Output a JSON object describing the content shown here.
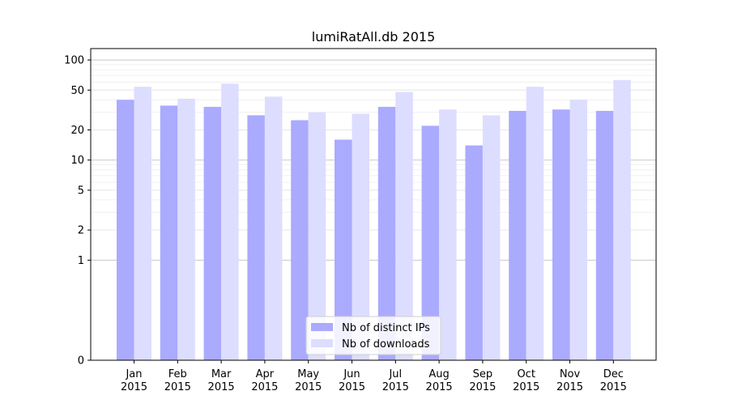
{
  "chart_data": {
    "type": "bar",
    "title": "lumiRatAll.db 2015",
    "xlabel": "",
    "ylabel": "",
    "yscale": "symlog",
    "ylim": [
      0,
      130
    ],
    "yticks": [
      0,
      1,
      2,
      5,
      10,
      20,
      50,
      100
    ],
    "grid": true,
    "legend_position": "bottom-center",
    "categories": [
      "Jan\n2015",
      "Feb\n2015",
      "Mar\n2015",
      "Apr\n2015",
      "May\n2015",
      "Jun\n2015",
      "Jul\n2015",
      "Aug\n2015",
      "Sep\n2015",
      "Oct\n2015",
      "Nov\n2015",
      "Dec\n2015"
    ],
    "series": [
      {
        "name": "Nb of distinct IPs",
        "color": "#aaaaff",
        "values": [
          40,
          35,
          34,
          28,
          25,
          16,
          34,
          22,
          14,
          31,
          32,
          31
        ]
      },
      {
        "name": "Nb of downloads",
        "color": "#ddddff",
        "values": [
          54,
          41,
          58,
          43,
          30,
          29,
          48,
          32,
          28,
          54,
          40,
          63
        ]
      }
    ]
  }
}
